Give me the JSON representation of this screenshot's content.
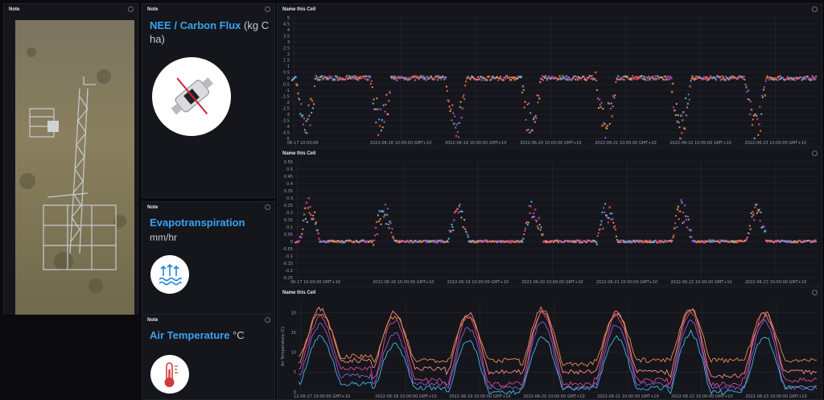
{
  "panels": {
    "photo": {
      "header": "Note"
    },
    "nee": {
      "header": "Note",
      "title": "NEE / Carbon Flux",
      "unit": "(kg C ha)"
    },
    "et": {
      "header": "Note",
      "title": "Evapotranspiration",
      "unit": "mm/hr"
    },
    "airtemp": {
      "header": "Note",
      "title": "Air Temperature",
      "unit": "°C"
    }
  },
  "icons": {
    "nee": "gas-analyzer-sensor-icon",
    "et": "water-vapor-icon",
    "airtemp": "thermometer-icon",
    "photo": "flux-tower-photo"
  },
  "colors": {
    "accent": "#3aa3f0",
    "series": [
      "#ff6b3d",
      "#e24a8f",
      "#9b59d6",
      "#4fc3f7",
      "#f2994a"
    ]
  },
  "chart_data": [
    {
      "type": "scatter",
      "header": "Name this Cell",
      "ylim": [
        -5,
        5
      ],
      "yticks": [
        "5",
        "4.5",
        "4",
        "3.5",
        "3",
        "2.5",
        "2",
        "1.5",
        "1",
        "0.5",
        "0",
        "-0.5",
        "-1",
        "-1.5",
        "-2",
        "-2.5",
        "-3",
        "-3.5",
        "-4",
        "-4.5",
        "-5"
      ],
      "xtick_labels": [
        "06-17 10:00:00",
        "2022-06-18 10:00:00 GMT+10",
        "2022-06-19 10:00:00 GMT+10",
        "2022-06-20 10:00:00 GMT+10",
        "2022-06-21 10:00:00 GMT+10",
        "2022-06-22 10:00:00 GMT+10",
        "2022-06-23 10:00:00 GMT+10"
      ],
      "days": 7,
      "night_value": 0,
      "day_min": -4.2,
      "scatter_spread": 1.2
    },
    {
      "type": "scatter",
      "header": "Name this Cell",
      "ylim": [
        -0.25,
        0.55
      ],
      "yticks": [
        "0.55",
        "0.5",
        "0.45",
        "0.4",
        "0.35",
        "0.3",
        "0.25",
        "0.2",
        "0.15",
        "0.1",
        "0.05",
        "0",
        "-0.05",
        "-0.1",
        "-0.15",
        "-0.2",
        "-0.25"
      ],
      "xtick_labels": [
        "06-17 10:00:00 GMT+10",
        "2022-06-18 10:00:00 GMT+10",
        "2022-06-19 10:00:00 GMT+10",
        "2022-06-20 10:00:00 GMT+10",
        "2022-06-21 10:00:00 GMT+10",
        "2022-06-22 10:00:00 GMT+10",
        "2022-06-23 10:00:00 GMT+10"
      ],
      "days": 7,
      "night_value": 0,
      "day_max": 0.22,
      "scatter_spread": 0.05
    },
    {
      "type": "line",
      "header": "Name this Cell",
      "ylabel": "Air Temperature (C)",
      "ylim": [
        0,
        23
      ],
      "yticks": [
        "20",
        "15",
        "10",
        "5",
        "0"
      ],
      "ytick_values": [
        20,
        15,
        10,
        5,
        0
      ],
      "xtick_labels": [
        "12-06-17 10:00:00 GMT+10",
        "2022-06-18 10:00:00 GMT+10",
        "2022-06-19 10:00:00 GMT+10",
        "2022-06-20 10:00:00 GMT+10",
        "2022-06-21 10:00:00 GMT+10",
        "2022-06-22 10:00:00 GMT+10",
        "2022-06-23 10:00:00 GMT+10"
      ],
      "series": [
        {
          "min": [
            8,
            6,
            5,
            5,
            5,
            4,
            5
          ],
          "max": [
            21,
            20,
            20,
            20,
            20,
            21,
            19
          ]
        },
        {
          "min": [
            6,
            3,
            2,
            2,
            3,
            2,
            3
          ],
          "max": [
            19,
            18,
            19,
            20,
            19,
            20,
            20
          ]
        },
        {
          "min": [
            4,
            2,
            1,
            1,
            2,
            1,
            1
          ],
          "max": [
            17,
            15,
            16,
            18,
            17,
            18,
            18
          ]
        },
        {
          "min": [
            2,
            1,
            0,
            1,
            1,
            0,
            1
          ],
          "max": [
            14,
            12,
            13,
            14,
            14,
            15,
            14
          ]
        },
        {
          "min": [
            9,
            8,
            8,
            7,
            8,
            8,
            8
          ],
          "max": [
            20,
            19,
            19,
            21,
            20,
            21,
            20
          ]
        }
      ]
    }
  ]
}
